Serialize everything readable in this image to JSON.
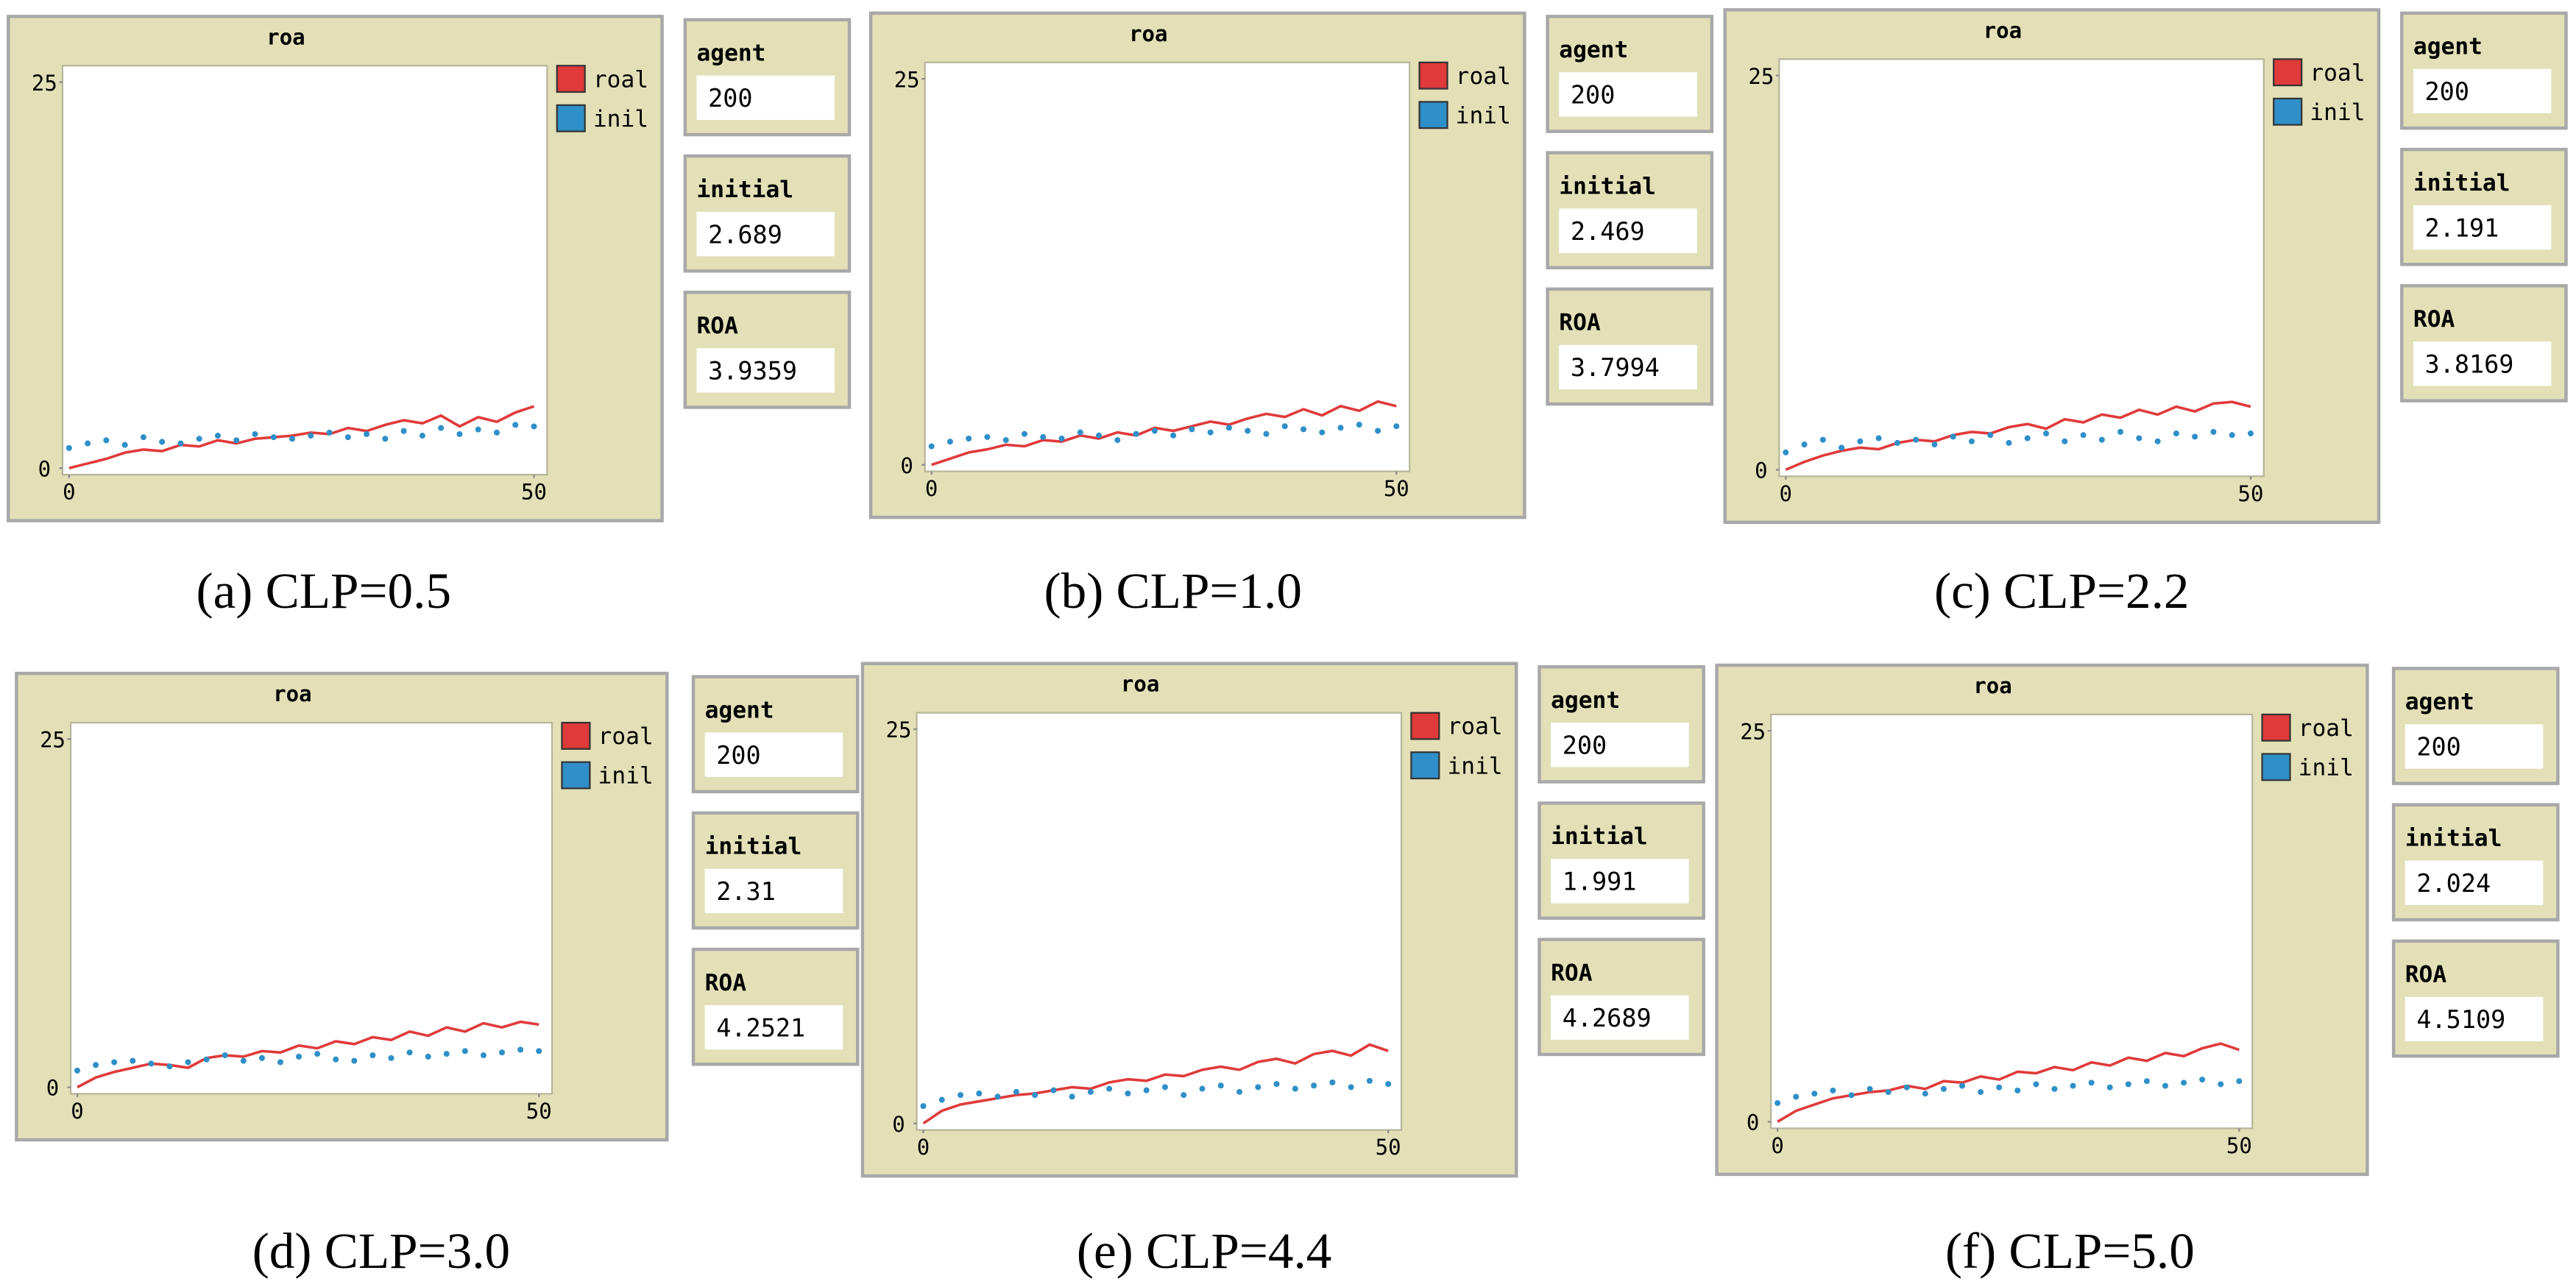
{
  "chart_data": [
    {
      "type": "line",
      "title": "roa",
      "caption": "(a) CLP=0.5",
      "x": [
        0,
        2,
        4,
        6,
        8,
        10,
        12,
        14,
        16,
        18,
        20,
        22,
        24,
        26,
        28,
        30,
        32,
        34,
        36,
        38,
        40,
        42,
        44,
        46,
        48,
        50
      ],
      "series": [
        {
          "name": "roal",
          "color": "#e03a3a",
          "style": "line",
          "values": [
            0,
            0.3,
            0.6,
            1,
            1.2,
            1.1,
            1.5,
            1.4,
            1.8,
            1.6,
            1.9,
            2,
            2.1,
            2.3,
            2.2,
            2.6,
            2.4,
            2.8,
            3.1,
            2.9,
            3.4,
            2.7,
            3.3,
            3.0,
            3.6,
            4.0
          ]
        },
        {
          "name": "inil",
          "color": "#2f8fc8",
          "style": "dots",
          "values": [
            1.3,
            1.6,
            1.8,
            1.5,
            2,
            1.7,
            1.6,
            1.9,
            2.1,
            1.8,
            2.2,
            2.0,
            1.9,
            2.1,
            2.3,
            2.0,
            2.2,
            1.9,
            2.4,
            2.1,
            2.6,
            2.2,
            2.5,
            2.3,
            2.8,
            2.7
          ]
        }
      ],
      "xlim": [
        0,
        50
      ],
      "xticks": [
        0,
        50
      ],
      "ylim": [
        0,
        25
      ],
      "yticks": [
        0,
        25
      ],
      "monitors": [
        {
          "label": "agent",
          "value": 200
        },
        {
          "label": "initial",
          "value": 2.689
        },
        {
          "label": "ROA",
          "value": 3.9359
        }
      ]
    },
    {
      "type": "line",
      "title": "roa",
      "caption": "(b) CLP=1.0",
      "x": [
        0,
        2,
        4,
        6,
        8,
        10,
        12,
        14,
        16,
        18,
        20,
        22,
        24,
        26,
        28,
        30,
        32,
        34,
        36,
        38,
        40,
        42,
        44,
        46,
        48,
        50
      ],
      "series": [
        {
          "name": "roal",
          "color": "#e03a3a",
          "style": "line",
          "values": [
            0,
            0.4,
            0.8,
            1.0,
            1.3,
            1.2,
            1.6,
            1.5,
            1.9,
            1.7,
            2.1,
            1.9,
            2.4,
            2.2,
            2.5,
            2.8,
            2.6,
            3.0,
            3.3,
            3.1,
            3.6,
            3.2,
            3.8,
            3.5,
            4.1,
            3.8
          ]
        },
        {
          "name": "inil",
          "color": "#2f8fc8",
          "style": "dots",
          "values": [
            1.2,
            1.5,
            1.7,
            1.8,
            1.6,
            2.0,
            1.8,
            1.7,
            2.1,
            1.9,
            1.6,
            2.0,
            2.2,
            1.9,
            2.3,
            2.1,
            2.4,
            2.2,
            2.0,
            2.5,
            2.3,
            2.1,
            2.4,
            2.6,
            2.2,
            2.5
          ]
        }
      ],
      "xlim": [
        0,
        50
      ],
      "xticks": [
        0,
        50
      ],
      "ylim": [
        0,
        25
      ],
      "yticks": [
        0,
        25
      ],
      "monitors": [
        {
          "label": "agent",
          "value": 200
        },
        {
          "label": "initial",
          "value": 2.469
        },
        {
          "label": "ROA",
          "value": 3.7994
        }
      ]
    },
    {
      "type": "line",
      "title": "roa",
      "caption": "(c) CLP=2.2",
      "x": [
        0,
        2,
        4,
        6,
        8,
        10,
        12,
        14,
        16,
        18,
        20,
        22,
        24,
        26,
        28,
        30,
        32,
        34,
        36,
        38,
        40,
        42,
        44,
        46,
        48,
        50
      ],
      "series": [
        {
          "name": "roal",
          "color": "#e03a3a",
          "style": "line",
          "values": [
            0,
            0.5,
            0.9,
            1.2,
            1.4,
            1.3,
            1.7,
            1.9,
            1.8,
            2.2,
            2.4,
            2.3,
            2.7,
            2.9,
            2.6,
            3.2,
            3.0,
            3.5,
            3.3,
            3.8,
            3.5,
            4.0,
            3.7,
            4.2,
            4.3,
            4.0
          ]
        },
        {
          "name": "inil",
          "color": "#2f8fc8",
          "style": "dots",
          "values": [
            1.1,
            1.6,
            1.9,
            1.4,
            1.8,
            2.0,
            1.7,
            1.9,
            1.6,
            2.1,
            1.8,
            2.2,
            1.7,
            2.0,
            2.3,
            1.8,
            2.2,
            1.9,
            2.4,
            2.0,
            1.8,
            2.3,
            2.1,
            2.4,
            2.2,
            2.3
          ]
        }
      ],
      "xlim": [
        0,
        50
      ],
      "xticks": [
        0,
        50
      ],
      "ylim": [
        0,
        25
      ],
      "yticks": [
        0,
        25
      ],
      "monitors": [
        {
          "label": "agent",
          "value": 200
        },
        {
          "label": "initial",
          "value": 2.191
        },
        {
          "label": "ROA",
          "value": 3.8169
        }
      ]
    },
    {
      "type": "line",
      "title": "roa",
      "caption": "(d) CLP=3.0",
      "x": [
        0,
        2,
        4,
        6,
        8,
        10,
        12,
        14,
        16,
        18,
        20,
        22,
        24,
        26,
        28,
        30,
        32,
        34,
        36,
        38,
        40,
        42,
        44,
        46,
        48,
        50
      ],
      "series": [
        {
          "name": "roal",
          "color": "#e03a3a",
          "style": "line",
          "values": [
            0,
            0.7,
            1.1,
            1.4,
            1.7,
            1.6,
            1.4,
            2.1,
            2.3,
            2.2,
            2.6,
            2.5,
            3.0,
            2.8,
            3.3,
            3.1,
            3.6,
            3.4,
            4.0,
            3.7,
            4.3,
            4.0,
            4.6,
            4.3,
            4.7,
            4.5
          ]
        },
        {
          "name": "inil",
          "color": "#2f8fc8",
          "style": "dots",
          "values": [
            1.2,
            1.6,
            1.8,
            1.9,
            1.7,
            1.5,
            1.8,
            2.0,
            2.3,
            1.9,
            2.1,
            1.8,
            2.2,
            2.4,
            2.0,
            1.9,
            2.3,
            2.1,
            2.5,
            2.2,
            2.4,
            2.6,
            2.3,
            2.5,
            2.7,
            2.6
          ]
        }
      ],
      "xlim": [
        0,
        50
      ],
      "xticks": [
        0,
        50
      ],
      "ylim": [
        0,
        25
      ],
      "yticks": [
        0,
        25
      ],
      "monitors": [
        {
          "label": "agent",
          "value": 200
        },
        {
          "label": "initial",
          "value": 2.31
        },
        {
          "label": "ROA",
          "value": 4.2521
        }
      ]
    },
    {
      "type": "line",
      "title": "roa",
      "caption": "(e) CLP=4.4",
      "x": [
        0,
        2,
        4,
        6,
        8,
        10,
        12,
        14,
        16,
        18,
        20,
        22,
        24,
        26,
        28,
        30,
        32,
        34,
        36,
        38,
        40,
        42,
        44,
        46,
        48,
        50
      ],
      "series": [
        {
          "name": "roal",
          "color": "#e03a3a",
          "style": "line",
          "values": [
            0,
            0.8,
            1.2,
            1.4,
            1.6,
            1.8,
            1.9,
            2.1,
            2.3,
            2.2,
            2.6,
            2.8,
            2.7,
            3.1,
            3.0,
            3.4,
            3.6,
            3.4,
            3.9,
            4.1,
            3.8,
            4.4,
            4.6,
            4.3,
            5.0,
            4.6
          ]
        },
        {
          "name": "inil",
          "color": "#2f8fc8",
          "style": "dots",
          "values": [
            1.1,
            1.5,
            1.8,
            1.9,
            1.7,
            2.0,
            1.8,
            2.1,
            1.7,
            2.0,
            2.2,
            1.9,
            2.1,
            2.3,
            1.8,
            2.2,
            2.4,
            2.0,
            2.3,
            2.5,
            2.2,
            2.4,
            2.6,
            2.3,
            2.7,
            2.5
          ]
        }
      ],
      "xlim": [
        0,
        50
      ],
      "xticks": [
        0,
        50
      ],
      "ylim": [
        0,
        25
      ],
      "yticks": [
        0,
        25
      ],
      "monitors": [
        {
          "label": "agent",
          "value": 200
        },
        {
          "label": "initial",
          "value": 1.991
        },
        {
          "label": "ROA",
          "value": 4.2689
        }
      ]
    },
    {
      "type": "line",
      "title": "roa",
      "caption": "(f) CLP=5.0",
      "x": [
        0,
        2,
        4,
        6,
        8,
        10,
        12,
        14,
        16,
        18,
        20,
        22,
        24,
        26,
        28,
        30,
        32,
        34,
        36,
        38,
        40,
        42,
        44,
        46,
        48,
        50
      ],
      "series": [
        {
          "name": "roal",
          "color": "#e03a3a",
          "style": "line",
          "values": [
            0,
            0.7,
            1.1,
            1.5,
            1.7,
            1.9,
            2.0,
            2.3,
            2.1,
            2.6,
            2.5,
            2.9,
            2.7,
            3.2,
            3.1,
            3.5,
            3.3,
            3.8,
            3.6,
            4.1,
            3.9,
            4.4,
            4.2,
            4.7,
            5.0,
            4.6
          ]
        },
        {
          "name": "inil",
          "color": "#2f8fc8",
          "style": "dots",
          "values": [
            1.2,
            1.6,
            1.8,
            2.0,
            1.7,
            2.1,
            1.9,
            2.2,
            1.8,
            2.1,
            2.3,
            1.9,
            2.2,
            2.0,
            2.4,
            2.1,
            2.3,
            2.5,
            2.2,
            2.4,
            2.6,
            2.3,
            2.5,
            2.7,
            2.4,
            2.6
          ]
        }
      ],
      "xlim": [
        0,
        50
      ],
      "xticks": [
        0,
        50
      ],
      "ylim": [
        0,
        25
      ],
      "yticks": [
        0,
        25
      ],
      "monitors": [
        {
          "label": "agent",
          "value": 200
        },
        {
          "label": "initial",
          "value": 2.024
        },
        {
          "label": "ROA",
          "value": 4.5109
        }
      ]
    }
  ]
}
